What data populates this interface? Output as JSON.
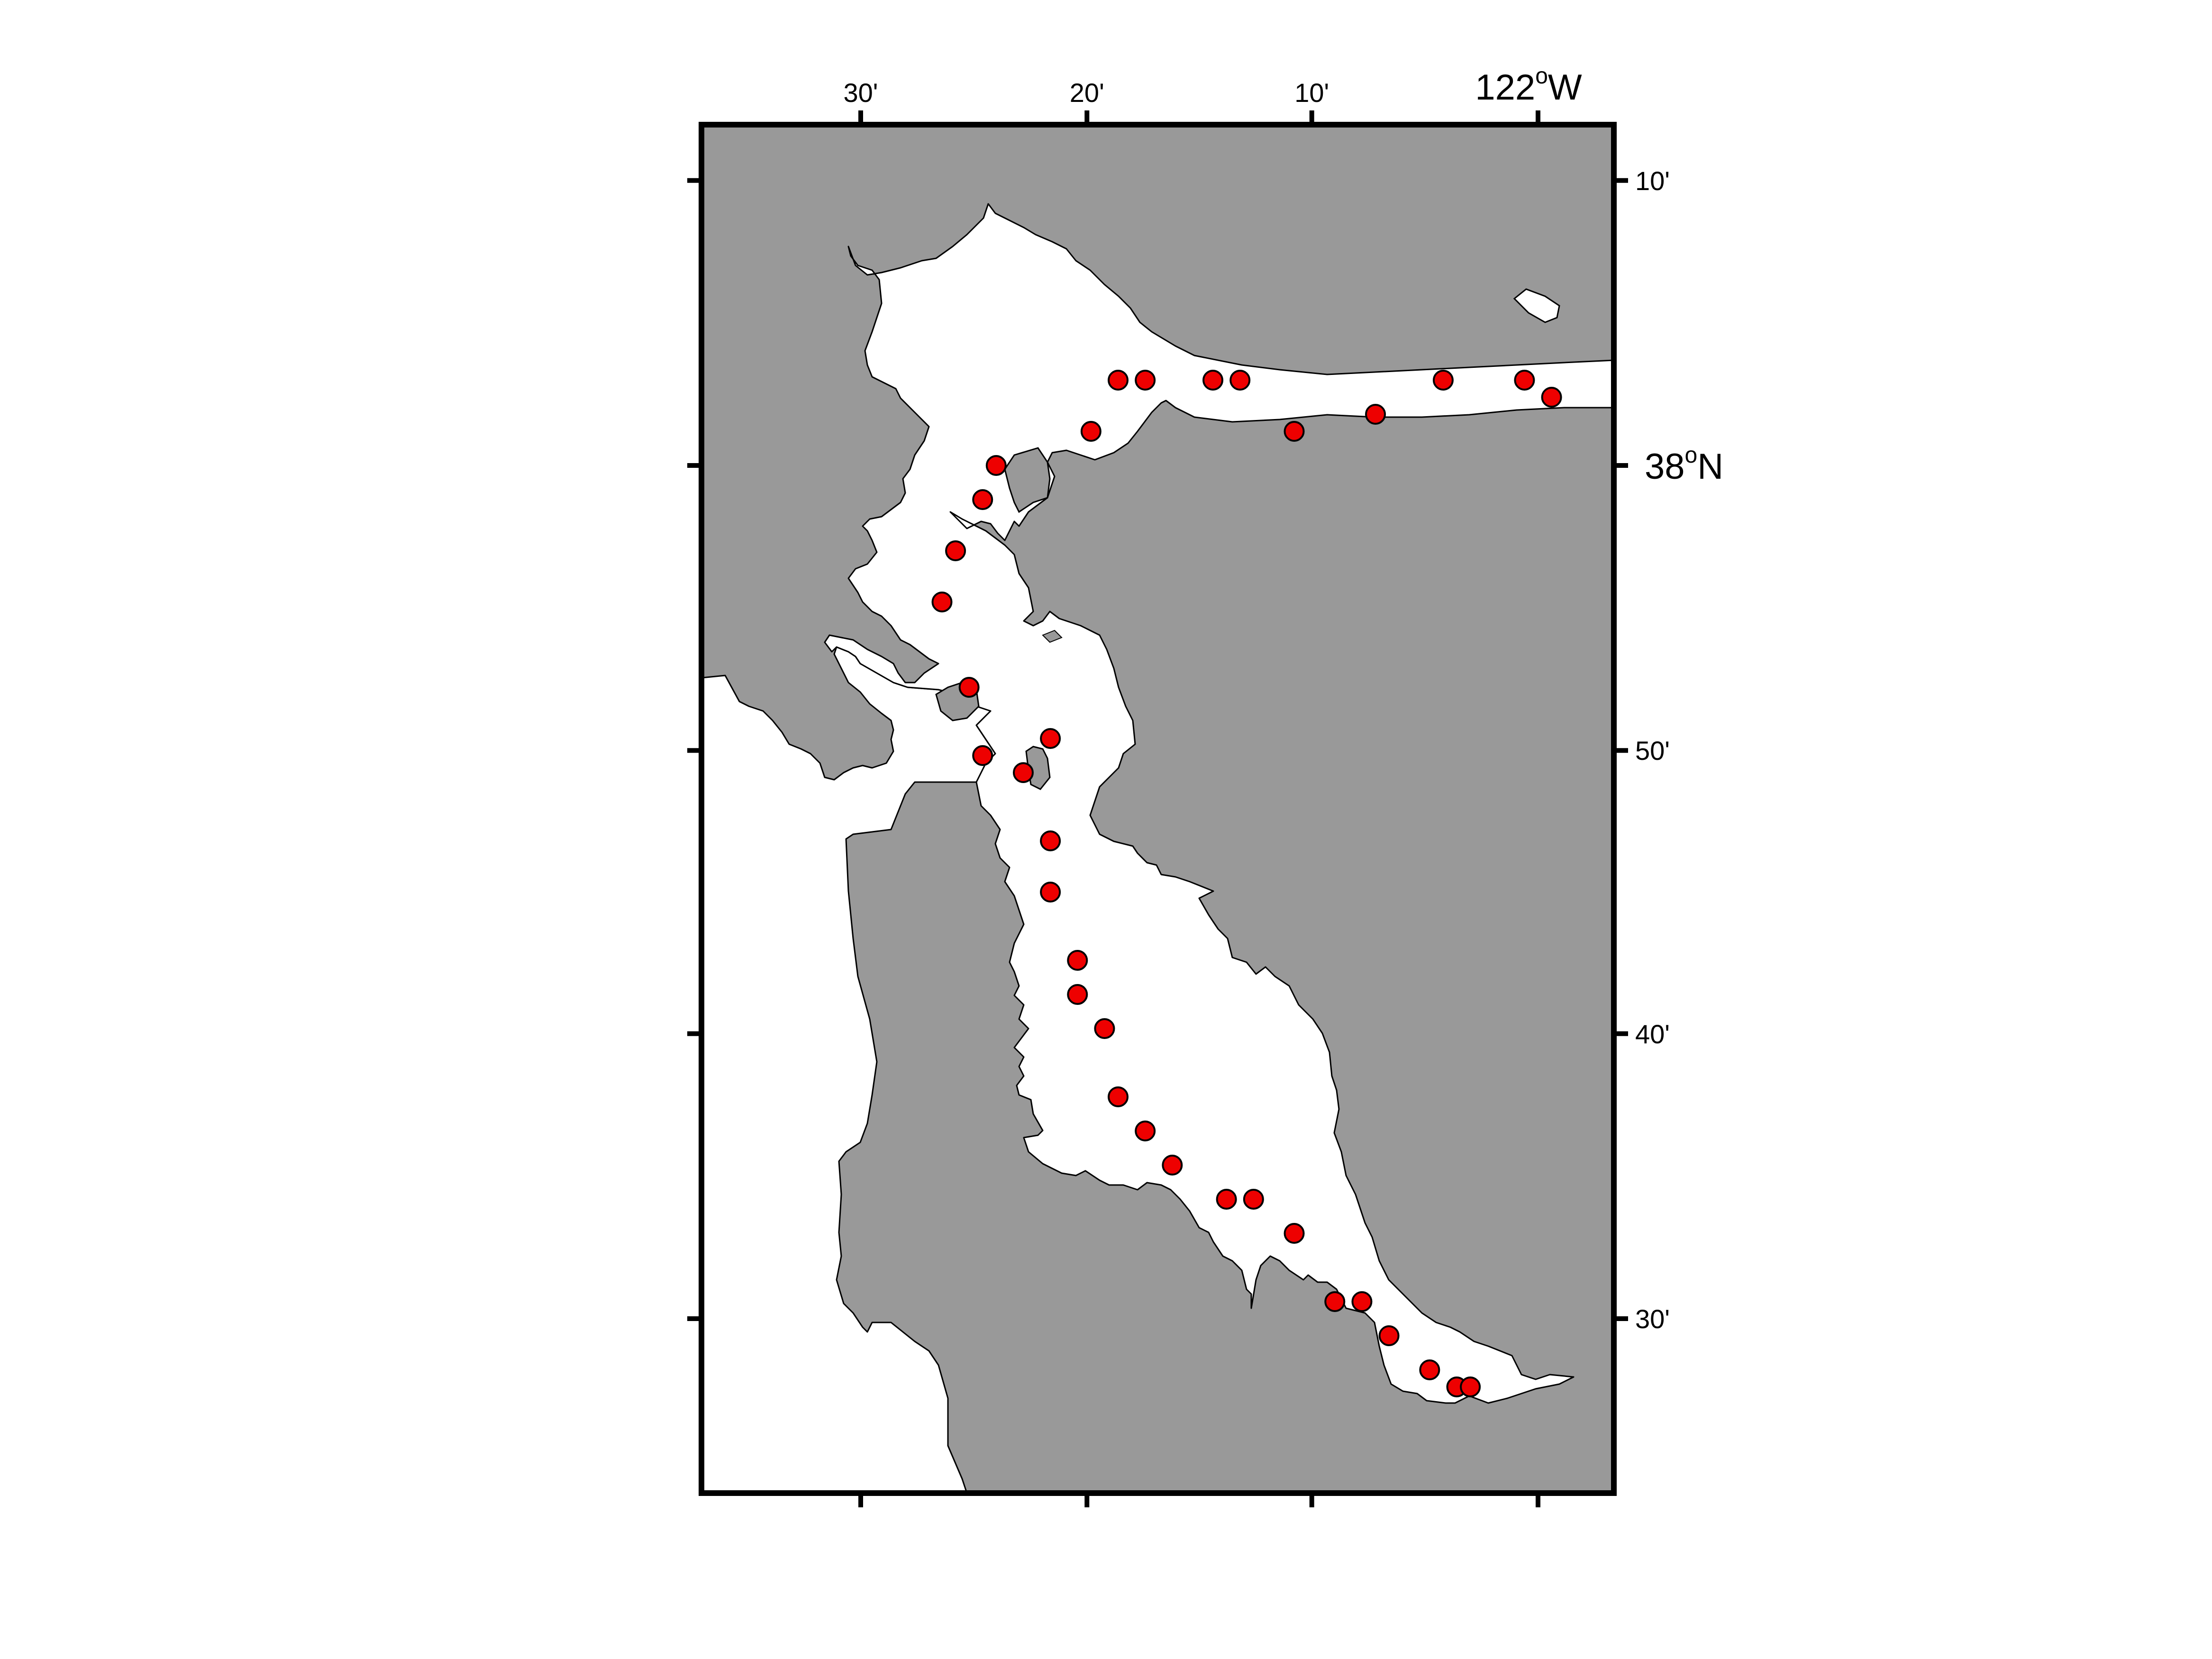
{
  "map": {
    "colors": {
      "land": "#999999",
      "water": "#ffffff",
      "station": "#ee0000",
      "outline": "#000000"
    },
    "top_labels": [
      {
        "lon": -122.5,
        "text": "30'"
      },
      {
        "lon": -122.333,
        "text": "20'"
      },
      {
        "lon": -122.167,
        "text": "10'"
      }
    ],
    "top_major_label": {
      "lon": -122.0,
      "text": "122",
      "deg": "o",
      "hemi": "W"
    },
    "right_labels": [
      {
        "lat": 38.167,
        "text": "10'"
      },
      {
        "lat": 37.833,
        "text": "50'"
      },
      {
        "lat": 37.667,
        "text": "40'"
      },
      {
        "lat": 37.5,
        "text": "30'"
      }
    ],
    "right_major_label": {
      "lat": 38.0,
      "text": "38",
      "deg": "o",
      "hemi": "N"
    },
    "stations": [
      {
        "lon": -122.31,
        "lat": 38.05
      },
      {
        "lon": -122.29,
        "lat": 38.05
      },
      {
        "lon": -122.24,
        "lat": 38.05
      },
      {
        "lon": -122.22,
        "lat": 38.05
      },
      {
        "lon": -122.07,
        "lat": 38.05
      },
      {
        "lon": -122.01,
        "lat": 38.05
      },
      {
        "lon": -121.99,
        "lat": 38.04
      },
      {
        "lon": -122.12,
        "lat": 38.03
      },
      {
        "lon": -122.18,
        "lat": 38.02
      },
      {
        "lon": -122.33,
        "lat": 38.02
      },
      {
        "lon": -122.4,
        "lat": 38.0
      },
      {
        "lon": -122.41,
        "lat": 37.98
      },
      {
        "lon": -122.43,
        "lat": 37.95
      },
      {
        "lon": -122.44,
        "lat": 37.92
      },
      {
        "lon": -122.42,
        "lat": 37.87
      },
      {
        "lon": -122.36,
        "lat": 37.84
      },
      {
        "lon": -122.41,
        "lat": 37.83
      },
      {
        "lon": -122.38,
        "lat": 37.82
      },
      {
        "lon": -122.36,
        "lat": 37.78
      },
      {
        "lon": -122.36,
        "lat": 37.75
      },
      {
        "lon": -122.34,
        "lat": 37.71
      },
      {
        "lon": -122.34,
        "lat": 37.69
      },
      {
        "lon": -122.32,
        "lat": 37.67
      },
      {
        "lon": -122.31,
        "lat": 37.63
      },
      {
        "lon": -122.29,
        "lat": 37.61
      },
      {
        "lon": -122.27,
        "lat": 37.59
      },
      {
        "lon": -122.23,
        "lat": 37.57
      },
      {
        "lon": -122.21,
        "lat": 37.57
      },
      {
        "lon": -122.18,
        "lat": 37.55
      },
      {
        "lon": -122.15,
        "lat": 37.51
      },
      {
        "lon": -122.13,
        "lat": 37.51
      },
      {
        "lon": -122.11,
        "lat": 37.49
      },
      {
        "lon": -122.08,
        "lat": 37.47
      },
      {
        "lon": -122.06,
        "lat": 37.46
      },
      {
        "lon": -122.05,
        "lat": 37.46
      }
    ]
  }
}
